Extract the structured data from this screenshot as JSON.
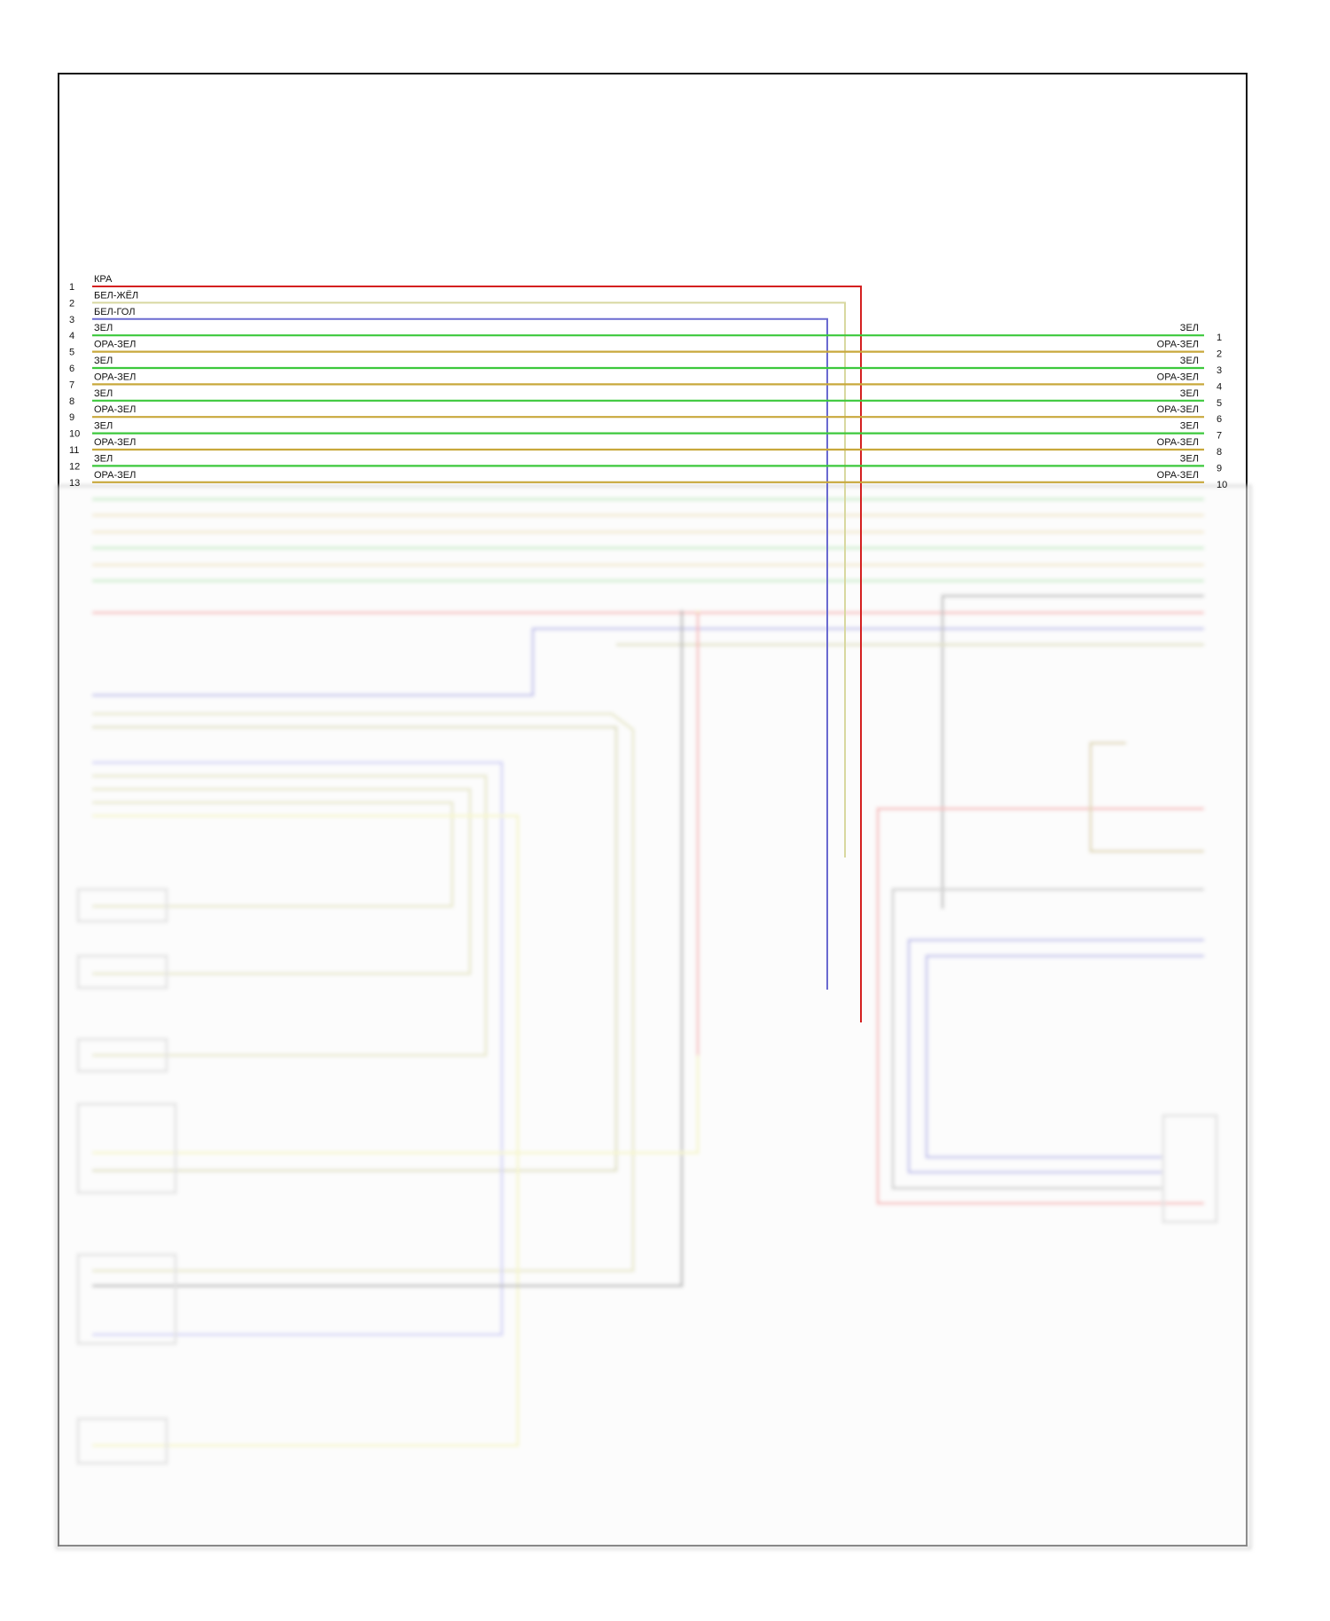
{
  "diagram": {
    "left_wires": [
      {
        "pin": "1",
        "label": "КРА",
        "color": "#d42020"
      },
      {
        "pin": "2",
        "label": "БЕЛ-ЖЁЛ",
        "color": "#d8d8a0"
      },
      {
        "pin": "3",
        "label": "БЕЛ-ГОЛ",
        "color": "#6a6ad0"
      },
      {
        "pin": "4",
        "label": "ЗЕЛ",
        "color": "#3cc83c"
      },
      {
        "pin": "5",
        "label": "ОРА-ЗЕЛ",
        "color": "#c8a83c"
      },
      {
        "pin": "6",
        "label": "ЗЕЛ",
        "color": "#3cc83c"
      },
      {
        "pin": "7",
        "label": "ОРА-ЗЕЛ",
        "color": "#c8a83c"
      },
      {
        "pin": "8",
        "label": "ЗЕЛ",
        "color": "#3cc83c"
      },
      {
        "pin": "9",
        "label": "ОРА-ЗЕЛ",
        "color": "#c8a83c"
      },
      {
        "pin": "10",
        "label": "ЗЕЛ",
        "color": "#3cc83c"
      },
      {
        "pin": "11",
        "label": "ОРА-ЗЕЛ",
        "color": "#c8a83c"
      },
      {
        "pin": "12",
        "label": "ЗЕЛ",
        "color": "#3cc83c"
      },
      {
        "pin": "13",
        "label": "ОРА-ЗЕЛ",
        "color": "#c8a83c"
      }
    ],
    "right_wires": [
      {
        "pin": "1",
        "label": "ЗЕЛ"
      },
      {
        "pin": "2",
        "label": "ОРА-ЗЕЛ"
      },
      {
        "pin": "3",
        "label": "ЗЕЛ"
      },
      {
        "pin": "4",
        "label": "ОРА-ЗЕЛ"
      },
      {
        "pin": "5",
        "label": "ЗЕЛ"
      },
      {
        "pin": "6",
        "label": "ОРА-ЗЕЛ"
      },
      {
        "pin": "7",
        "label": "ЗЕЛ"
      },
      {
        "pin": "8",
        "label": "ОРА-ЗЕЛ"
      },
      {
        "pin": "9",
        "label": "ЗЕЛ"
      },
      {
        "pin": "10",
        "label": "ОРА-ЗЕЛ"
      }
    ]
  }
}
